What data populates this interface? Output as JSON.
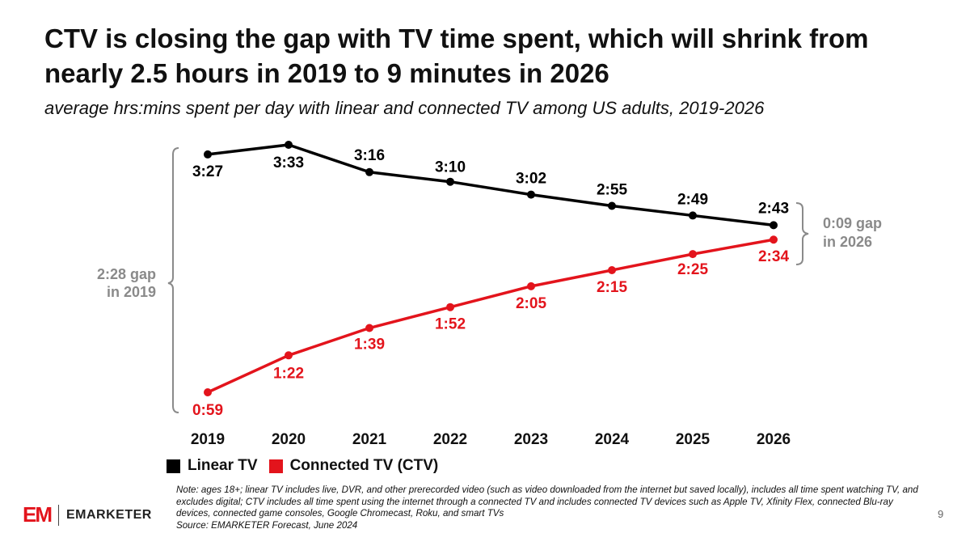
{
  "header": {
    "title": "CTV is closing the gap with TV time spent, which will shrink from nearly 2.5 hours in 2019 to 9 minutes in 2026",
    "subtitle": "average hrs:mins spent per day with linear and connected TV among US adults, 2019-2026"
  },
  "chart_data": {
    "type": "line",
    "categories": [
      "2019",
      "2020",
      "2021",
      "2022",
      "2023",
      "2024",
      "2025",
      "2026"
    ],
    "series": [
      {
        "name": "Linear TV",
        "color": "#000000",
        "values": [
          207,
          213,
          196,
          190,
          182,
          175,
          169,
          163
        ],
        "labels": [
          "3:27",
          "3:33",
          "3:16",
          "3:10",
          "3:02",
          "2:55",
          "2:49",
          "2:43"
        ]
      },
      {
        "name": "Connected TV (CTV)",
        "color": "#e3141c",
        "values": [
          59,
          82,
          99,
          112,
          125,
          135,
          145,
          154
        ],
        "labels": [
          "0:59",
          "1:22",
          "1:39",
          "1:52",
          "2:05",
          "2:15",
          "2:25",
          "2:34"
        ]
      }
    ],
    "ylim": [
      59,
      213
    ],
    "annotations": [
      {
        "id": "gap-2019",
        "lines": [
          "2:28 gap",
          "in 2019"
        ]
      },
      {
        "id": "gap-2026",
        "lines": [
          "0:09 gap",
          "in 2026"
        ]
      }
    ]
  },
  "legend": {
    "linear": "Linear TV",
    "ctv": "Connected TV (CTV)"
  },
  "footer": {
    "note": "Note: ages 18+; linear TV includes live, DVR, and other prerecorded video (such as video downloaded from the internet but saved locally), includes all time spent watching TV, and excludes digital; CTV includes all time spent using the internet through a connected TV and includes connected TV devices such as Apple TV, Xfinity Flex, connected Blu-ray devices, connected game consoles, Google Chromecast, Roku, and smart TVs",
    "source": "Source: EMARKETER Forecast, June 2024",
    "logo_mark": "EM",
    "logo_word": "EMARKETER",
    "page_number": "9",
    "colors": {
      "brand": "#e3141c"
    }
  }
}
